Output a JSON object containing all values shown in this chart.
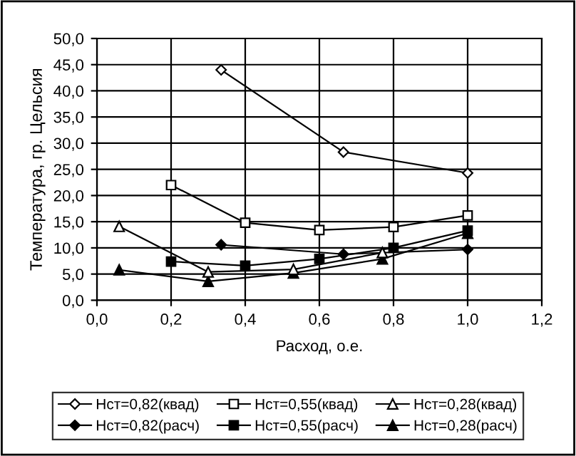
{
  "chart_data": {
    "type": "line",
    "xlabel": "Расход, о.е.",
    "ylabel": "Температура, гр. Цельсия",
    "xlim": [
      0,
      1.2
    ],
    "ylim": [
      0,
      50
    ],
    "xticks": [
      {
        "value": 0,
        "label": "0,0"
      },
      {
        "value": 0.2,
        "label": "0,2"
      },
      {
        "value": 0.4,
        "label": "0,4"
      },
      {
        "value": 0.6,
        "label": "0,6"
      },
      {
        "value": 0.8,
        "label": "0,8"
      },
      {
        "value": 1.0,
        "label": "1,0"
      },
      {
        "value": 1.2,
        "label": "1,2"
      }
    ],
    "yticks": [
      {
        "value": 0,
        "label": "0,0"
      },
      {
        "value": 5,
        "label": "5,0"
      },
      {
        "value": 10,
        "label": "10,0"
      },
      {
        "value": 15,
        "label": "15,0"
      },
      {
        "value": 20,
        "label": "20,0"
      },
      {
        "value": 25,
        "label": "25,0"
      },
      {
        "value": 30,
        "label": "30,0"
      },
      {
        "value": 35,
        "label": "35,0"
      },
      {
        "value": 40,
        "label": "40,0"
      },
      {
        "value": 45,
        "label": "45,0"
      },
      {
        "value": 50,
        "label": "50,0"
      }
    ],
    "grid": true,
    "legend": "bottom",
    "series": [
      {
        "name": "Нст=0,82(квад)",
        "color": "#000000",
        "marker": "diamond",
        "x": [
          0.335,
          0.665,
          1.0
        ],
        "values": [
          44.0,
          28.3,
          24.3
        ]
      },
      {
        "name": "Нст=0,55(квад)",
        "color": "#000000",
        "marker": "square",
        "x": [
          0.2,
          0.4,
          0.6,
          0.8,
          1.0
        ],
        "values": [
          22.0,
          14.8,
          13.4,
          14.0,
          16.2
        ]
      },
      {
        "name": "Нст=0,28(квад)",
        "color": "#000000",
        "marker": "triangle",
        "x": [
          0.06,
          0.3,
          0.53,
          0.77
        ],
        "values": [
          14.1,
          5.4,
          5.9,
          9.1
        ]
      },
      {
        "name": "Нст=0,82(расч)",
        "color": "#000000",
        "marker": "diamond",
        "x": [
          0.335,
          0.665,
          1.0
        ],
        "values": [
          10.6,
          8.8,
          9.7
        ]
      },
      {
        "name": "Нст=0,55(расч)",
        "color": "#000000",
        "marker": "square",
        "x": [
          0.2,
          0.4,
          0.6,
          0.8,
          1.0
        ],
        "values": [
          7.4,
          6.6,
          7.9,
          10.0,
          13.3
        ]
      },
      {
        "name": "Нст=0,28(расч)",
        "color": "#000000",
        "marker": "triangle",
        "x": [
          0.06,
          0.3,
          0.53,
          0.77,
          1.0
        ],
        "values": [
          5.8,
          3.6,
          5.2,
          7.9,
          12.8
        ]
      }
    ]
  }
}
